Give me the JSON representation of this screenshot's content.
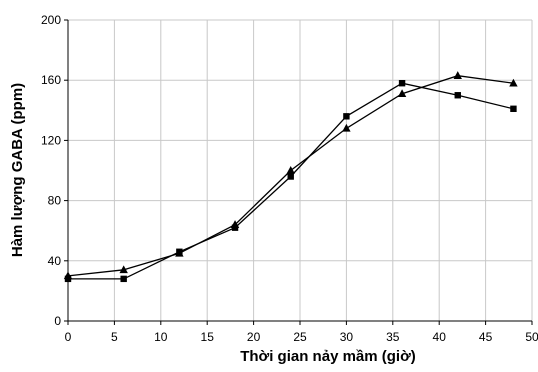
{
  "chart_data": {
    "type": "line",
    "title": "",
    "xlabel": "Thời gian nảy mầm (giờ)",
    "ylabel": "Hàm lượng GABA (ppm)",
    "xlim": [
      0,
      50
    ],
    "ylim": [
      0,
      200
    ],
    "x_ticks": [
      "0",
      "5",
      "10",
      "15",
      "20",
      "25",
      "30",
      "35",
      "40",
      "45",
      "50"
    ],
    "y_ticks": [
      "0",
      "40",
      "80",
      "120",
      "160",
      "200"
    ],
    "grid": true,
    "legend": "none",
    "series": [
      {
        "marker": "square",
        "color": "#000000",
        "x": [
          0,
          6,
          12,
          18,
          24,
          30,
          36,
          42,
          48
        ],
        "y": [
          28,
          28,
          46,
          62,
          96,
          136,
          158,
          150,
          141
        ]
      },
      {
        "marker": "triangle",
        "color": "#000000",
        "x": [
          0,
          6,
          12,
          18,
          24,
          30,
          36,
          42,
          48
        ],
        "y": [
          30,
          34,
          45,
          64,
          100,
          128,
          151,
          163,
          158
        ]
      }
    ]
  }
}
